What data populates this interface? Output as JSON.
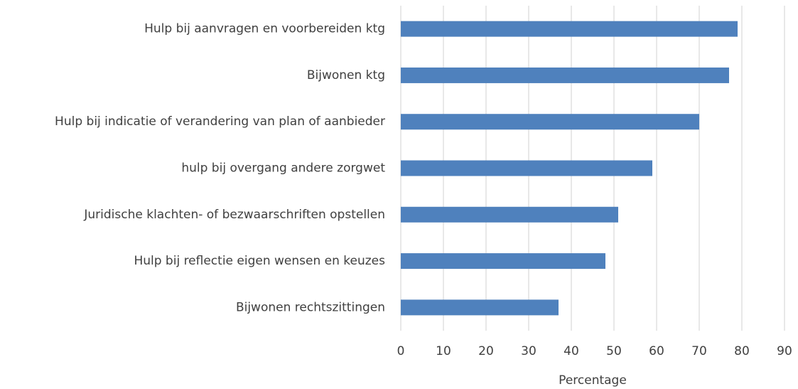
{
  "chart_data": {
    "type": "bar",
    "orientation": "horizontal",
    "categories": [
      "Hulp bij aanvragen en voorbereiden ktg",
      "Bijwonen ktg",
      "Hulp bij indicatie of verandering van plan of aanbieder",
      "hulp bij overgang andere zorgwet",
      "Juridische klachten- of bezwaarschriften opstellen",
      "Hulp bij reflectie eigen wensen en keuzes",
      "Bijwonen rechtszittingen"
    ],
    "values": [
      79,
      77,
      70,
      59,
      51,
      48,
      37
    ],
    "color": "#4f81bd",
    "xlabel": "Percentage",
    "xlim": [
      0,
      90
    ],
    "xticks": [
      0,
      10,
      20,
      30,
      40,
      50,
      60,
      70,
      80,
      90
    ],
    "grid": true
  }
}
